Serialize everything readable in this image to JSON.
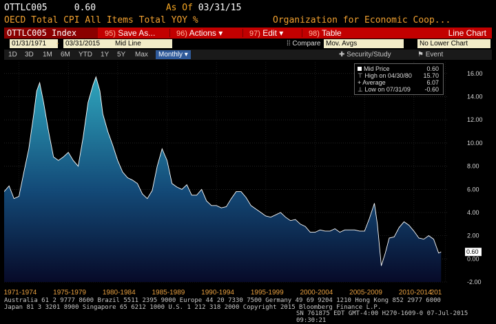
{
  "header": {
    "ticker": "OTTLC005",
    "price": "0.60",
    "asof_label": "As Of",
    "asof_date": "03/31/15",
    "description": "OECD Total CPI All Items Total YOY %",
    "organization": "Organization for Economic Coop..."
  },
  "command_bar": {
    "security": "OTTLC005 Index",
    "save_num": "95)",
    "save_label": "Save As...",
    "actions_num": "96)",
    "actions_label": "Actions",
    "edit_num": "97)",
    "edit_label": "Edit",
    "table_num": "98)",
    "table_label": "Table",
    "chart_type": "Line Chart"
  },
  "date_row": {
    "start": "01/31/1971",
    "end": "03/31/2015",
    "mode": "Mid Line",
    "compare": "Compare",
    "mov_avgs": "Mov. Avgs",
    "lower_chart": "No Lower Chart"
  },
  "range_row": {
    "buttons": [
      "1D",
      "3D",
      "1M",
      "6M",
      "YTD",
      "1Y",
      "5Y",
      "Max"
    ],
    "frequency": "Monthly",
    "security_study": "Security/Study",
    "event": "Event"
  },
  "legend": {
    "mid_label": "Mid Price",
    "mid_value": "0.60",
    "high_label": "High on 04/30/80",
    "high_value": "15.70",
    "avg_label": "Average",
    "avg_value": "6.07",
    "low_label": "Low on 07/31/09",
    "low_value": "-0.60"
  },
  "footer": {
    "line1": "Australia 61 2 9777 8600 Brazil 5511 2395 9000 Europe 44 20 7330 7500 Germany 49 69 9204 1210 Hong Kong 852 2977 6000",
    "line2": "Japan 81 3 3201 8900          Singapore 65 6212 1000          U.S. 1 212 318 2000          Copyright 2015 Bloomberg Finance L.P.",
    "line3": "SN 761875 EDT  GMT-4:00 H270-1609-0 07-Jul-2015 09:30:21"
  },
  "colors": {
    "area_top": "#2a8fa8",
    "area_bottom": "#0a1030",
    "line": "#ffffff",
    "bar_red": "#c20000",
    "amber": "#e8a040"
  },
  "chart_data": {
    "type": "area",
    "ylim": [
      -2.0,
      17.0
    ],
    "yticks": [
      -2.0,
      0.0,
      2.0,
      4.0,
      6.0,
      8.0,
      10.0,
      12.0,
      14.0,
      16.0
    ],
    "ytick_labels": [
      "-2.00",
      "0.00",
      "2.00",
      "4.00",
      "6.00",
      "8.00",
      "10.00",
      "12.00",
      "14.00",
      "16.00"
    ],
    "current_value_label": "0.60",
    "x_labels": [
      "1971-1974",
      "1975-1979",
      "1980-1984",
      "1985-1989",
      "1990-1994",
      "1995-1999",
      "2000-2004",
      "2005-2009",
      "2010-2014",
      "201"
    ],
    "x_label_years": [
      1972.5,
      1977.5,
      1982.5,
      1987.5,
      1992.5,
      1997.5,
      2002.5,
      2007.5,
      2012.5,
      2015.7
    ],
    "xlim": [
      1971.0,
      2016.0
    ],
    "x": [
      1971.0,
      1971.5,
      1972.0,
      1972.5,
      1973.0,
      1973.5,
      1974.0,
      1974.3,
      1974.6,
      1975.0,
      1975.5,
      1976.0,
      1976.5,
      1977.0,
      1977.5,
      1978.0,
      1978.5,
      1979.0,
      1979.5,
      1980.0,
      1980.3,
      1980.7,
      1981.0,
      1981.5,
      1982.0,
      1982.5,
      1983.0,
      1983.5,
      1984.0,
      1984.5,
      1985.0,
      1985.5,
      1986.0,
      1986.5,
      1987.0,
      1987.5,
      1988.0,
      1988.5,
      1989.0,
      1989.5,
      1990.0,
      1990.5,
      1991.0,
      1991.5,
      1992.0,
      1992.5,
      1993.0,
      1993.5,
      1994.0,
      1994.5,
      1995.0,
      1995.5,
      1996.0,
      1996.5,
      1997.0,
      1997.5,
      1998.0,
      1998.5,
      1999.0,
      1999.5,
      2000.0,
      2000.5,
      2001.0,
      2001.5,
      2002.0,
      2002.5,
      2003.0,
      2003.5,
      2004.0,
      2004.5,
      2005.0,
      2005.5,
      2006.0,
      2006.5,
      2007.0,
      2007.5,
      2008.0,
      2008.5,
      2008.8,
      2009.2,
      2009.6,
      2010.0,
      2010.5,
      2011.0,
      2011.5,
      2012.0,
      2012.5,
      2013.0,
      2013.5,
      2014.0,
      2014.5,
      2015.0,
      2015.25
    ],
    "y": [
      5.8,
      6.3,
      5.2,
      5.4,
      7.5,
      9.5,
      12.5,
      14.5,
      15.2,
      13.5,
      11.0,
      8.8,
      8.5,
      8.8,
      9.2,
      8.5,
      8.0,
      10.5,
      13.5,
      15.0,
      15.7,
      14.5,
      12.5,
      11.0,
      9.8,
      8.5,
      7.5,
      7.0,
      6.8,
      6.5,
      5.6,
      5.2,
      5.9,
      8.0,
      9.5,
      8.5,
      6.5,
      6.2,
      6.0,
      6.4,
      5.5,
      5.5,
      6.0,
      5.0,
      4.6,
      4.6,
      4.4,
      4.5,
      5.2,
      5.8,
      5.8,
      5.3,
      4.6,
      4.3,
      4.0,
      3.7,
      3.6,
      3.8,
      4.0,
      3.6,
      3.3,
      3.4,
      3.0,
      2.8,
      2.3,
      2.3,
      2.5,
      2.4,
      2.4,
      2.6,
      2.3,
      2.5,
      2.5,
      2.5,
      2.4,
      2.4,
      3.5,
      4.8,
      3.0,
      -0.6,
      0.5,
      1.8,
      1.9,
      2.7,
      3.2,
      2.9,
      2.4,
      1.8,
      1.7,
      2.0,
      1.7,
      0.5,
      0.6
    ]
  }
}
